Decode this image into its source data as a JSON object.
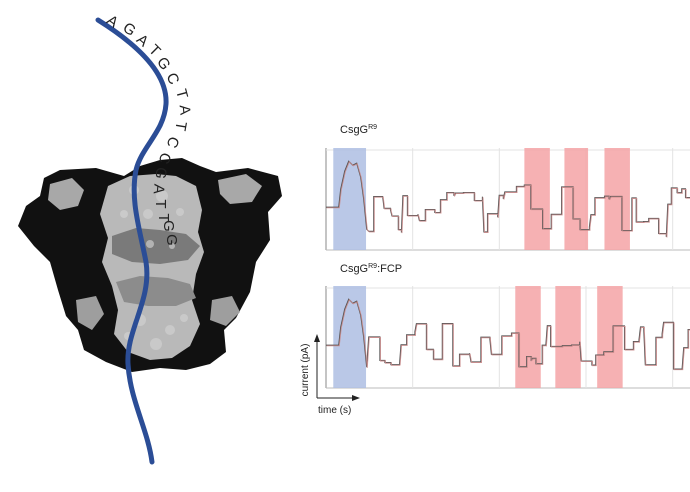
{
  "dna_sequence": [
    "A",
    "G",
    "A",
    "T",
    "G",
    "C",
    "T",
    "A",
    "T",
    "C",
    "C",
    "G",
    "A",
    "T",
    "T",
    "G",
    "G"
  ],
  "colors": {
    "strand": "#2b4d96",
    "protein_dark": "#111111",
    "protein_light": "#b5b5b5",
    "trace": "#c98a8a",
    "trace_dark": "#555555",
    "highlight_blue": "#aebee3",
    "highlight_red": "#f5a3a6",
    "grid": "#e3e3e3"
  },
  "traces": [
    {
      "title_main": "CsgG",
      "title_sup": "R9",
      "title_suffix": "",
      "highlights": [
        {
          "color": "blue",
          "start": 0.02,
          "end": 0.11
        },
        {
          "color": "red",
          "start": 0.545,
          "end": 0.615
        },
        {
          "color": "red",
          "start": 0.655,
          "end": 0.72
        },
        {
          "color": "red",
          "start": 0.765,
          "end": 0.835
        }
      ]
    },
    {
      "title_main": "CsgG",
      "title_sup": "R9",
      "title_suffix": ":FCP",
      "highlights": [
        {
          "color": "blue",
          "start": 0.02,
          "end": 0.11
        },
        {
          "color": "red",
          "start": 0.52,
          "end": 0.59
        },
        {
          "color": "red",
          "start": 0.63,
          "end": 0.7
        },
        {
          "color": "red",
          "start": 0.745,
          "end": 0.815
        }
      ]
    }
  ],
  "axes": {
    "y_label": "current (pA)",
    "x_label": "time (s)"
  }
}
